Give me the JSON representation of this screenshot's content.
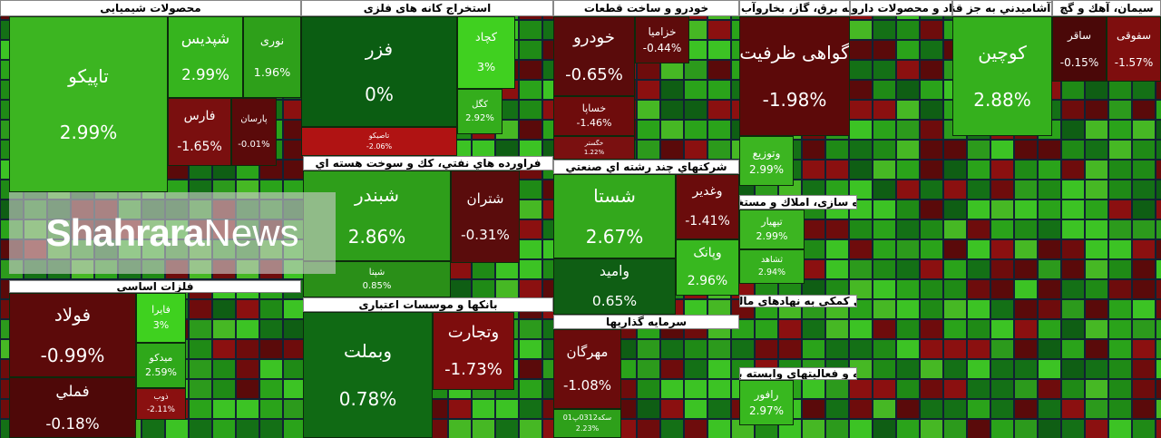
{
  "sectors": [
    {
      "title": "محصولات شیمیایی",
      "tiles": [
        {
          "name": "تاپیکو",
          "change": "2.99%",
          "color": "#3cb521"
        },
        {
          "name": "شپدیس",
          "change": "2.99%",
          "color": "#36b41e"
        },
        {
          "name": "نوری",
          "change": "1.96%",
          "color": "#2ea01a"
        },
        {
          "name": "فارس",
          "change": "-1.65%",
          "color": "#7a0f0f"
        },
        {
          "name": "پارسان",
          "change": "-0.01%",
          "color": "#5a0a0a"
        }
      ]
    },
    {
      "title": "فلزات اساسی",
      "tiles": [
        {
          "name": "فولاد",
          "change": "-0.99%",
          "color": "#5c0a0a"
        },
        {
          "name": "فملي",
          "change": "-0.18%",
          "color": "#4e0808"
        },
        {
          "name": "فایرا",
          "change": "3%",
          "color": "#3fd11f"
        },
        {
          "name": "میدکو",
          "change": "2.59%",
          "color": "#2fa81a"
        },
        {
          "name": "ذوب",
          "change": "-2.11%",
          "color": "#8a1010"
        }
      ]
    },
    {
      "title": "استخراج کانه های فلزی",
      "tiles": [
        {
          "name": "فزر",
          "change": "0%",
          "color": "#0b5d12"
        },
        {
          "name": "تاصیکو",
          "change": "-2.06%",
          "color": "#b01313"
        },
        {
          "name": "کچاد",
          "change": "3%",
          "color": "#40d020"
        },
        {
          "name": "کگل",
          "change": "2.92%",
          "color": "#34ad1c"
        }
      ]
    },
    {
      "title": "فراورده هاي نفتي، كك و سوخت هسته اي",
      "tiles": [
        {
          "name": "شبندر",
          "change": "2.86%",
          "color": "#2e9e1a"
        },
        {
          "name": "شپنا",
          "change": "0.85%",
          "color": "#2a8f18"
        },
        {
          "name": "شتران",
          "change": "-0.31%",
          "color": "#5a0c0c"
        }
      ]
    },
    {
      "title": "بانکها و موسسات اعتباری",
      "tiles": [
        {
          "name": "وبملت",
          "change": "0.78%",
          "color": "#106a14"
        },
        {
          "name": "وتجارت",
          "change": "-1.73%",
          "color": "#7d0d0d"
        }
      ]
    },
    {
      "title": "خودرو و ساخت قطعات",
      "tiles": [
        {
          "name": "خودرو",
          "change": "-0.65%",
          "color": "#5a0b0b"
        },
        {
          "name": "خساپا",
          "change": "-1.46%",
          "color": "#6e0c0c"
        },
        {
          "name": "خگستر",
          "change": "1.22%",
          "color": "#7a1010"
        },
        {
          "name": "خزامیا",
          "change": "-0.44%",
          "color": "#5e0b0b"
        }
      ]
    },
    {
      "title": "شرکتهاي چند رشته اي صنعتي",
      "tiles": [
        {
          "name": "شستا",
          "change": "2.67%",
          "color": "#33a81c"
        },
        {
          "name": "وامید",
          "change": "0.65%",
          "color": "#0f5e14"
        },
        {
          "name": "وغدیر",
          "change": "-1.41%",
          "color": "#6a0c0c"
        },
        {
          "name": "وپانک",
          "change": "2.96%",
          "color": "#38b81f"
        }
      ]
    },
    {
      "title": "سرمايه گذاريها",
      "tiles": [
        {
          "name": "مهرگان",
          "change": "-1.08%",
          "color": "#6a0c0c"
        },
        {
          "name": "سکه0312پ01",
          "change": "2.23%",
          "color": "#2ea01a"
        }
      ]
    },
    {
      "title": "عرضه برق، گاز، بخاروآب گرم",
      "tiles": [
        {
          "name": "گواهی ظرفیت",
          "change": "-1.98%",
          "color": "#5c0909"
        },
        {
          "name": "وتوزیع",
          "change": "2.99%",
          "color": "#3cb521"
        }
      ]
    },
    {
      "title": "مواد و محصولات دارویی",
      "tiles": []
    },
    {
      "title": "غذايي و آشاميدني به جز قند و شكر",
      "tiles": [
        {
          "name": "کوچین",
          "change": "2.88%",
          "color": "#35b01d"
        }
      ]
    },
    {
      "title": "سیمان، آهك و گچ",
      "tiles": [
        {
          "name": "ساقر",
          "change": "-0.15%",
          "color": "#4a0808"
        },
        {
          "name": "سفوقی",
          "change": "-1.57%",
          "color": "#7e0e0e"
        }
      ]
    },
    {
      "title": "انبوه سازی، املاك و مستغلات",
      "tiles": [
        {
          "name": "تیهیار",
          "change": "2.99%",
          "color": "#3cb521"
        },
        {
          "name": "ثشاهد",
          "change": "2.94%",
          "color": "#36b01e"
        }
      ]
    },
    {
      "title": "فعالیتهای کمکی به نهادهای مالی واسط",
      "tiles": []
    },
    {
      "title": "رایانه و فعالیتهای وابسته به آن",
      "tiles": [
        {
          "name": "رافور",
          "change": "2.97%",
          "color": "#38b81f"
        }
      ]
    }
  ],
  "watermark": {
    "brand": "Shahrara",
    "suffix": "News"
  }
}
